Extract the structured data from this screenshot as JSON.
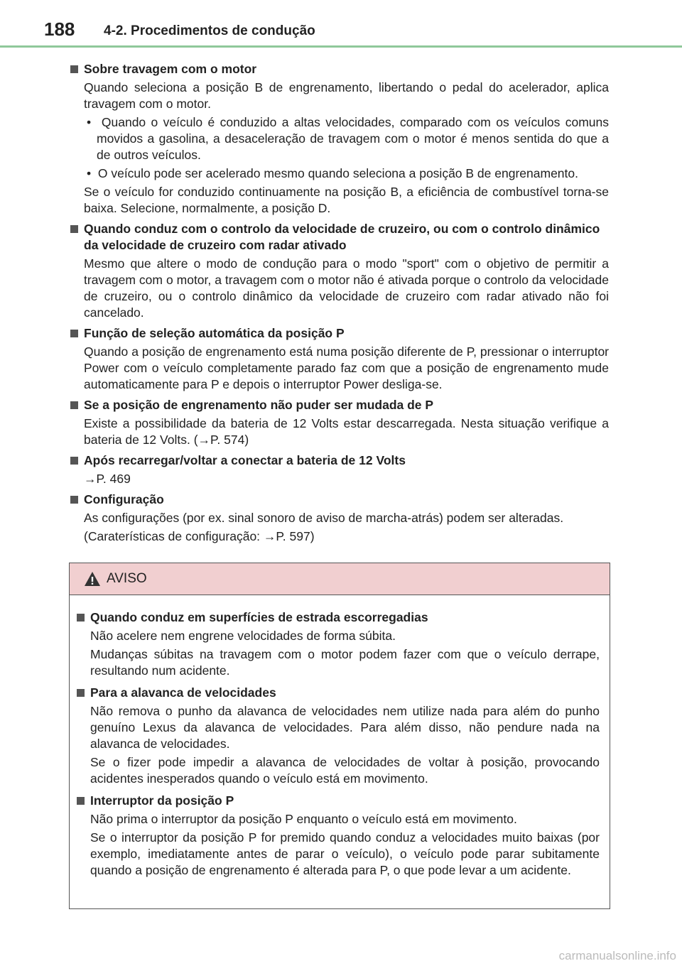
{
  "header": {
    "page_number": "188",
    "title": "4-2. Procedimentos de condução"
  },
  "sections": [
    {
      "heading": "Sobre travagem com o motor",
      "lines": [
        "Quando seleciona a posição B de engrenamento, libertando o pedal do acelerador, aplica travagem com o motor."
      ],
      "bullets": [
        "Quando o veículo é conduzido a altas velocidades, comparado com os veículos comuns movidos a gasolina, a desaceleração de travagem com o motor é menos sentida do que a de outros veículos.",
        "O veículo pode ser acelerado mesmo quando seleciona a posição B de engrenamento."
      ],
      "closing": [
        "Se o veículo for conduzido continuamente na posição B, a eficiência de combustível torna-se baixa. Selecione, normalmente, a posição D."
      ]
    },
    {
      "heading": "Quando conduz com o controlo da velocidade de cruzeiro, ou com o controlo dinâmico da velocidade de cruzeiro com radar ativado",
      "lines": [
        "Mesmo que altere o modo de condução para o modo \"sport\" com o objetivo de permitir a travagem com o motor, a travagem com o motor não é ativada porque o controlo da velocidade de cruzeiro, ou o controlo dinâmico da velocidade de cruzeiro com radar ativado não foi cancelado."
      ]
    },
    {
      "heading": "Função de seleção automática da posição P",
      "lines": [
        "Quando a posição de engrenamento está numa posição diferente de P, pressionar o interruptor Power com o veículo completamente parado faz com que a posição de engrenamento mude automaticamente para P e depois o interruptor Power desliga-se."
      ]
    },
    {
      "heading": "Se a posição de engrenamento não puder ser mudada de P",
      "lines": [
        "Existe a possibilidade da bateria de 12 Volts estar descarregada. Nesta situação verifique a bateria de 12 Volts. (→P. 574)"
      ]
    },
    {
      "heading": "Após recarregar/voltar a conectar a bateria de 12 Volts",
      "lines": [
        "→P. 469"
      ]
    },
    {
      "heading": "Configuração",
      "lines": [
        "As configurações (por ex. sinal sonoro de aviso de marcha-atrás) podem ser alteradas.",
        "(Caraterísticas de configuração: →P. 597)"
      ]
    }
  ],
  "warning": {
    "title": "AVISO",
    "sections": [
      {
        "heading": "Quando conduz em superfícies de estrada escorregadias",
        "lines": [
          "Não acelere nem engrene velocidades de forma súbita.",
          "Mudanças súbitas na travagem com o motor podem fazer com que o veículo derrape, resultando num acidente."
        ]
      },
      {
        "heading": "Para a alavanca de velocidades",
        "lines": [
          "Não remova o punho da alavanca de velocidades nem utilize nada para além do punho genuíno Lexus da alavanca de velocidades. Para além disso, não pendure nada na alavanca de velocidades.",
          "Se o fizer pode impedir a alavanca de velocidades de voltar à posição, provocando acidentes inesperados quando o veículo está em movimento."
        ]
      },
      {
        "heading": "Interruptor da posição P",
        "lines": [
          "Não prima o interruptor da posição P enquanto o veículo está em movimento.",
          "Se o interruptor da posição P for premido quando conduz a velocidades muito baixas (por exemplo, imediatamente antes de parar o veículo), o veículo pode parar subitamente quando a posição de engrenamento é alterada para P, o que pode levar a um acidente."
        ]
      }
    ]
  },
  "footer": {
    "watermark": "carmanualsonline.info"
  }
}
